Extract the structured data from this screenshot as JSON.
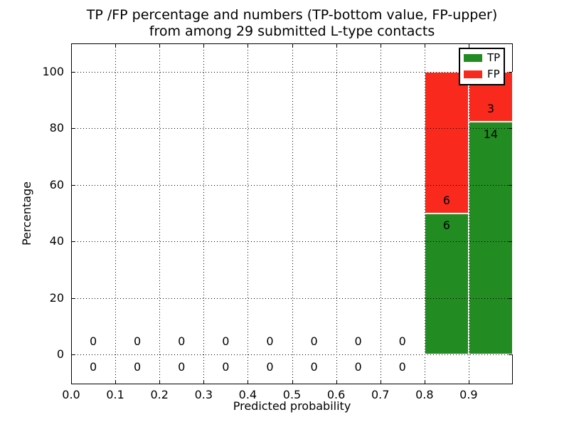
{
  "title": {
    "line1": "TP /FP percentage and numbers (TP-bottom value, FP-upper)",
    "line2": "from among 29 submitted L-type contacts"
  },
  "chart_data": {
    "type": "bar",
    "stacked": true,
    "title": "TP /FP percentage and numbers (TP-bottom value, FP-upper) from among 29 submitted L-type contacts",
    "xlabel": "Predicted probability",
    "ylabel": "Percentage",
    "xlim": [
      0.0,
      1.0
    ],
    "ylim": [
      -10.5,
      110
    ],
    "grid": true,
    "grid_style": "dotted",
    "legend_position": "upper right",
    "bin_edges": [
      0.0,
      0.1,
      0.2,
      0.3,
      0.4,
      0.5,
      0.6,
      0.7,
      0.8,
      0.9,
      1.0
    ],
    "xticks": [
      0.0,
      0.1,
      0.2,
      0.3,
      0.4,
      0.5,
      0.6,
      0.7,
      0.8,
      0.9
    ],
    "xtick_labels": [
      "0.0",
      "0.1",
      "0.2",
      "0.3",
      "0.4",
      "0.5",
      "0.6",
      "0.7",
      "0.8",
      "0.9"
    ],
    "yticks": [
      0,
      20,
      40,
      60,
      80,
      100
    ],
    "ytick_labels": [
      "0",
      "20",
      "40",
      "60",
      "80",
      "100"
    ],
    "series": [
      {
        "name": "TP",
        "color": "#228B22",
        "values_pct": [
          0,
          0,
          0,
          0,
          0,
          0,
          0,
          0,
          50,
          82.35
        ],
        "counts": [
          0,
          0,
          0,
          0,
          0,
          0,
          0,
          0,
          6,
          14
        ]
      },
      {
        "name": "FP",
        "color": "#F9291D",
        "values_pct": [
          0,
          0,
          0,
          0,
          0,
          0,
          0,
          0,
          50,
          17.65
        ],
        "counts": [
          0,
          0,
          0,
          0,
          0,
          0,
          0,
          0,
          6,
          3
        ]
      }
    ],
    "total_submitted": 29
  },
  "legend": {
    "entries": [
      {
        "label": "TP",
        "color": "#228B22"
      },
      {
        "label": "FP",
        "color": "#F9291D"
      }
    ]
  },
  "colors": {
    "tp": "#228B22",
    "fp": "#F9291D",
    "grid": "#000000",
    "axes": "#000000",
    "background": "#ffffff"
  }
}
